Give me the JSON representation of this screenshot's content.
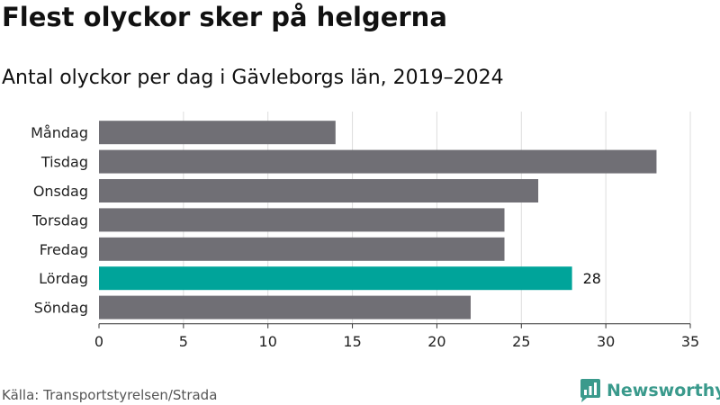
{
  "title": "Flest olyckor sker på helgerna",
  "subtitle": "Antal olyckor per dag i Gävleborgs län, 2019–2024",
  "source": "Källa: Transportstyrelsen/Strada",
  "brand": {
    "name": "Newsworthy",
    "icon": "newsworthy-logo-icon",
    "color": "#3a9a8c"
  },
  "colors": {
    "bar": "#706f75",
    "highlight": "#00a49a",
    "grid": "#dddddd",
    "axis": "#333333"
  },
  "chart_data": {
    "type": "bar",
    "orientation": "horizontal",
    "categories": [
      "Måndag",
      "Tisdag",
      "Onsdag",
      "Torsdag",
      "Fredag",
      "Lördag",
      "Söndag"
    ],
    "values": [
      14,
      33,
      26,
      24,
      24,
      28,
      22
    ],
    "highlight_category": "Lördag",
    "data_labels": [
      {
        "category": "Lördag",
        "text": "28"
      }
    ],
    "xlim": [
      0,
      35
    ],
    "xticks": [
      0,
      5,
      10,
      15,
      20,
      25,
      30,
      35
    ],
    "grid": true
  }
}
